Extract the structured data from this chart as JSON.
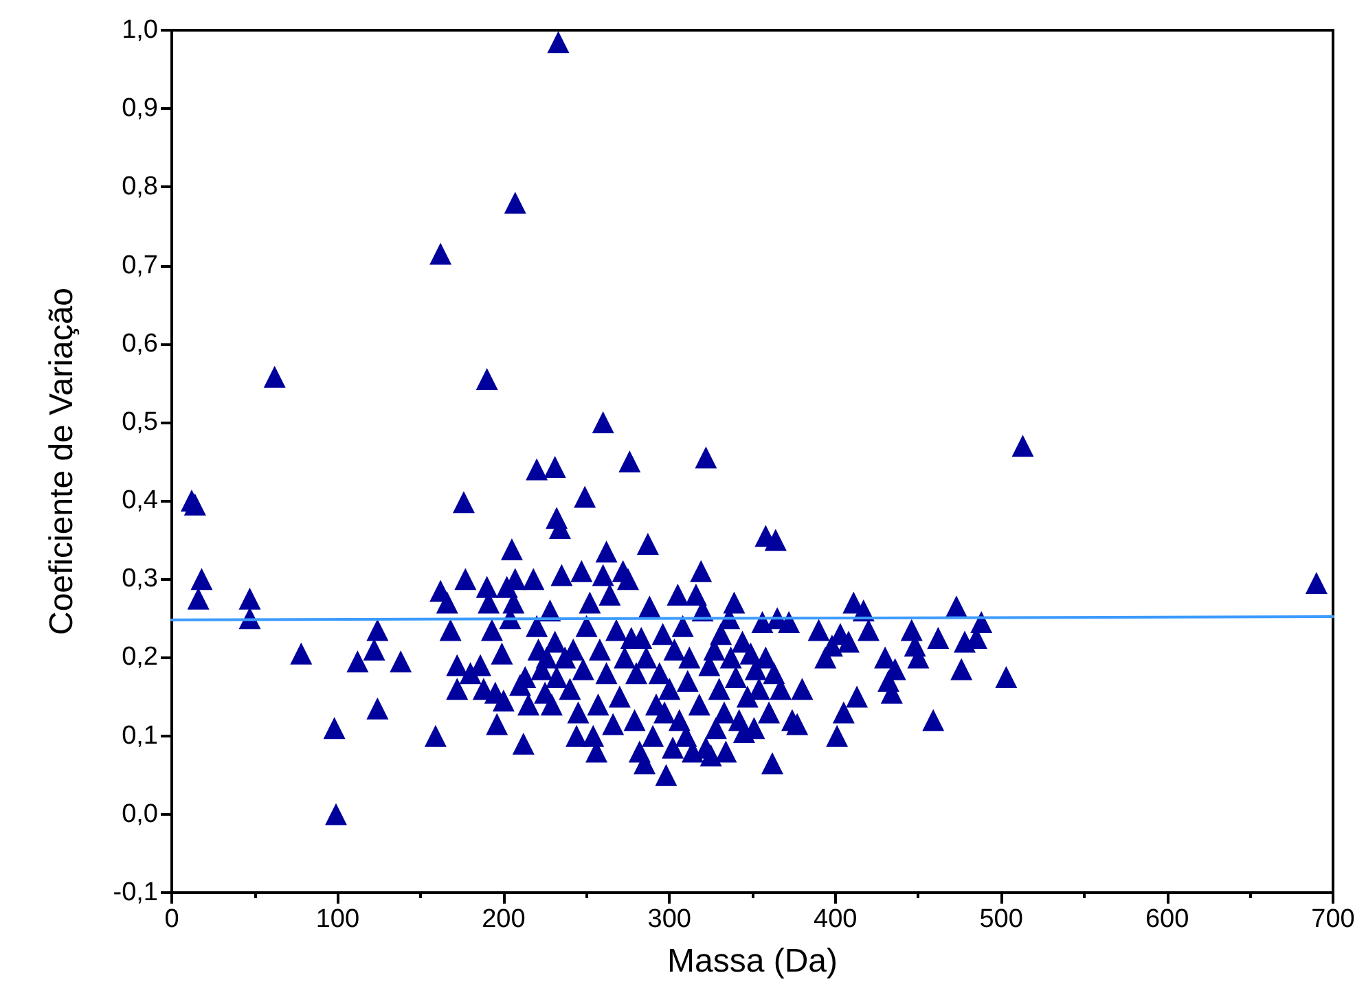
{
  "chart_data": {
    "type": "scatter",
    "xlabel": "Massa (Da)",
    "ylabel": "Coeficiente de Variação",
    "xlim": [
      0,
      700
    ],
    "xticks": [
      0,
      100,
      200,
      300,
      400,
      500,
      600,
      700
    ],
    "ylim": [
      -0.1,
      1.0
    ],
    "yticks": [
      {
        "value": -0.1,
        "label": "-0,1"
      },
      {
        "value": 0,
        "label": "0,0"
      },
      {
        "value": 0.1,
        "label": "0,1"
      },
      {
        "value": 0.2,
        "label": "0,2"
      },
      {
        "value": 0.3,
        "label": "0,3"
      },
      {
        "value": 0.4,
        "label": "0,4"
      },
      {
        "value": 0.5,
        "label": "0,5"
      },
      {
        "value": 0.6,
        "label": "0,6"
      },
      {
        "value": 0.7,
        "label": "0,7"
      },
      {
        "value": 0.8,
        "label": "0,8"
      },
      {
        "value": 0.9,
        "label": "0,9"
      },
      {
        "value": 1.0,
        "label": "1,0"
      }
    ],
    "grid": false,
    "marker": "triangle",
    "series": [
      {
        "color": "#00009c",
        "x": [
          233,
          207,
          162,
          62,
          190,
          260,
          513,
          322,
          276,
          220,
          231,
          249,
          176,
          12,
          14,
          232,
          234,
          358,
          364,
          287,
          262,
          205,
          690,
          18,
          16,
          47,
          47,
          78,
          98,
          99,
          112,
          122,
          124,
          124,
          138,
          159,
          162,
          166,
          168,
          172,
          172,
          177,
          180,
          186,
          188,
          190,
          191,
          193,
          195,
          196,
          199,
          200,
          202,
          204,
          206,
          207,
          210,
          212,
          213,
          215,
          218,
          220,
          221,
          223,
          225,
          226,
          228,
          229,
          231,
          232,
          235,
          237,
          240,
          242,
          244,
          245,
          247,
          248,
          250,
          252,
          254,
          256,
          257,
          258,
          260,
          262,
          264,
          266,
          268,
          270,
          272,
          273,
          275,
          277,
          279,
          280,
          282,
          283,
          285,
          286,
          288,
          290,
          292,
          294,
          296,
          297,
          298,
          300,
          302,
          303,
          305,
          306,
          308,
          310,
          311,
          312,
          314,
          316,
          318,
          319,
          320,
          322,
          324,
          325,
          327,
          328,
          330,
          331,
          333,
          334,
          336,
          337,
          339,
          340,
          342,
          344,
          345,
          347,
          349,
          351,
          352,
          354,
          356,
          358,
          360,
          362,
          363,
          365,
          367,
          372,
          374,
          377,
          380,
          390,
          394,
          398,
          401,
          403,
          405,
          408,
          411,
          413,
          417,
          420,
          430,
          432,
          434,
          436,
          446,
          448,
          450,
          459,
          462,
          473,
          476,
          478,
          485,
          488,
          503
        ],
        "values": [
          0.985,
          0.78,
          0.715,
          0.558,
          0.555,
          0.5,
          0.47,
          0.455,
          0.45,
          0.44,
          0.443,
          0.405,
          0.398,
          0.4,
          0.395,
          0.378,
          0.365,
          0.355,
          0.35,
          0.345,
          0.335,
          0.338,
          0.295,
          0.3,
          0.275,
          0.275,
          0.25,
          0.205,
          0.11,
          0.0,
          0.195,
          0.21,
          0.235,
          0.135,
          0.195,
          0.1,
          0.285,
          0.27,
          0.235,
          0.19,
          0.16,
          0.3,
          0.18,
          0.19,
          0.16,
          0.29,
          0.27,
          0.235,
          0.155,
          0.115,
          0.205,
          0.145,
          0.29,
          0.25,
          0.27,
          0.3,
          0.165,
          0.09,
          0.175,
          0.14,
          0.3,
          0.24,
          0.21,
          0.185,
          0.155,
          0.2,
          0.26,
          0.14,
          0.22,
          0.175,
          0.305,
          0.2,
          0.16,
          0.21,
          0.1,
          0.13,
          0.31,
          0.185,
          0.24,
          0.27,
          0.1,
          0.08,
          0.14,
          0.21,
          0.305,
          0.18,
          0.28,
          0.115,
          0.235,
          0.15,
          0.31,
          0.2,
          0.3,
          0.225,
          0.12,
          0.18,
          0.08,
          0.225,
          0.065,
          0.2,
          0.265,
          0.1,
          0.14,
          0.18,
          0.23,
          0.13,
          0.05,
          0.16,
          0.085,
          0.21,
          0.28,
          0.12,
          0.24,
          0.1,
          0.17,
          0.2,
          0.08,
          0.28,
          0.14,
          0.31,
          0.26,
          0.085,
          0.19,
          0.075,
          0.21,
          0.11,
          0.16,
          0.23,
          0.13,
          0.08,
          0.25,
          0.2,
          0.27,
          0.175,
          0.12,
          0.22,
          0.105,
          0.15,
          0.205,
          0.11,
          0.185,
          0.16,
          0.245,
          0.2,
          0.13,
          0.065,
          0.18,
          0.25,
          0.16,
          0.245,
          0.12,
          0.115,
          0.16,
          0.235,
          0.2,
          0.215,
          0.1,
          0.23,
          0.13,
          0.22,
          0.27,
          0.15,
          0.26,
          0.235,
          0.2,
          0.17,
          0.155,
          0.185,
          0.235,
          0.215,
          0.2,
          0.12,
          0.225,
          0.265,
          0.185,
          0.22,
          0.225,
          0.245,
          0.175
        ]
      },
      {
        "type": "line",
        "color": "#3d9bff",
        "marker": "none",
        "line_style": "solid",
        "x": [
          0,
          700
        ],
        "values": [
          0.248,
          0.252
        ]
      }
    ]
  }
}
